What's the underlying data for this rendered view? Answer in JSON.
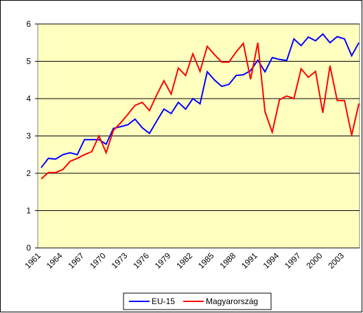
{
  "chart_data": {
    "type": "line",
    "categories": [
      "1961",
      null,
      null,
      "1964",
      null,
      null,
      "1967",
      null,
      null,
      "1970",
      null,
      null,
      "1973",
      null,
      null,
      "1976",
      null,
      null,
      "1979",
      null,
      null,
      "1982",
      null,
      null,
      "1985",
      null,
      null,
      "1988",
      null,
      null,
      "1991",
      null,
      null,
      "1994",
      null,
      null,
      "1997",
      null,
      null,
      "2000",
      null,
      null,
      "2003",
      null,
      null
    ],
    "series": [
      {
        "name": "EU-15",
        "color": "#0000ff",
        "values": [
          2.15,
          2.4,
          2.38,
          2.5,
          2.55,
          2.5,
          2.9,
          2.9,
          2.9,
          2.78,
          3.2,
          3.25,
          3.3,
          3.45,
          3.22,
          3.07,
          3.4,
          3.72,
          3.6,
          3.9,
          3.72,
          4.0,
          3.86,
          4.72,
          4.5,
          4.33,
          4.38,
          4.62,
          4.64,
          4.75,
          5.03,
          4.72,
          5.1,
          5.05,
          5.02,
          5.6,
          5.42,
          5.65,
          5.55,
          5.73,
          5.5,
          5.66,
          5.6,
          5.15,
          5.5
        ]
      },
      {
        "name": "Magyarország",
        "color": "#ff0000",
        "values": [
          1.85,
          2.02,
          2.02,
          2.1,
          2.32,
          2.4,
          2.5,
          2.58,
          3.0,
          2.55,
          3.15,
          3.35,
          3.58,
          3.82,
          3.9,
          3.68,
          4.1,
          4.48,
          4.12,
          4.82,
          4.62,
          5.2,
          4.73,
          5.4,
          5.18,
          4.98,
          4.98,
          5.25,
          5.48,
          4.52,
          5.5,
          3.65,
          3.1,
          3.97,
          4.07,
          4.0,
          4.8,
          4.57,
          4.73,
          3.62,
          4.88,
          3.95,
          3.95,
          3.02,
          3.87
        ]
      }
    ],
    "ylim": [
      0,
      6
    ],
    "yticks": [
      0,
      1,
      2,
      3,
      4,
      5,
      6
    ],
    "grid": true,
    "legend": "bottom"
  }
}
